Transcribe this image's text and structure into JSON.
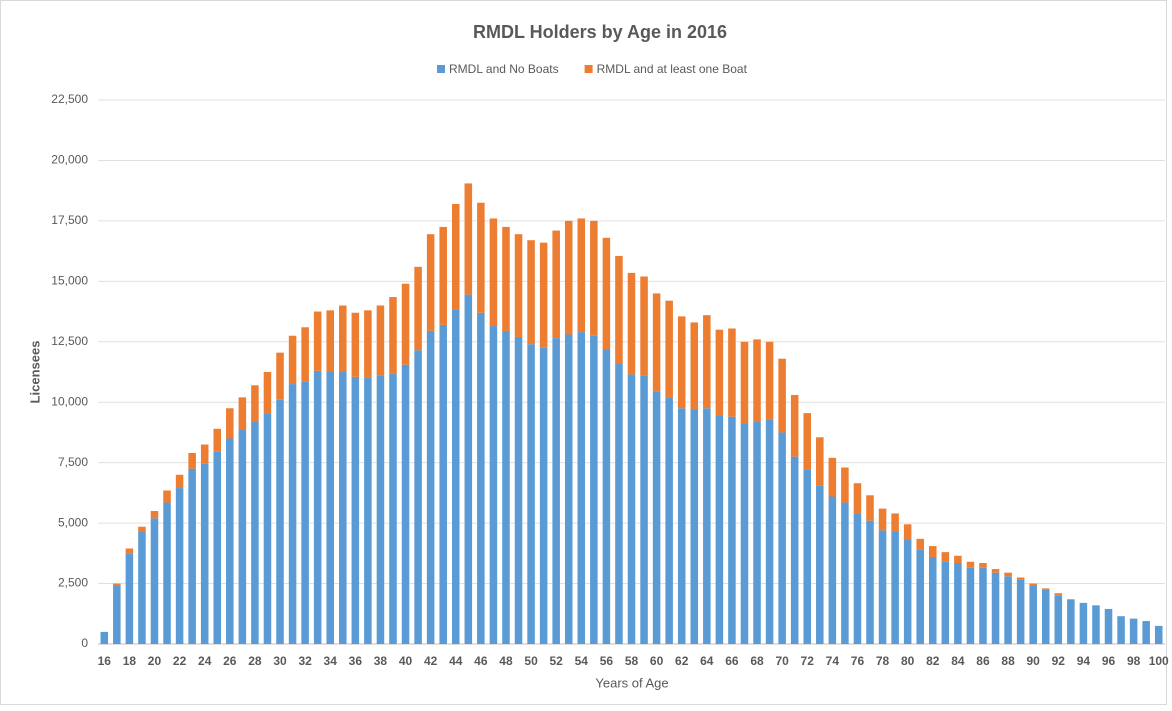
{
  "chart_data": {
    "type": "stacked_bar",
    "title": "RMDL Holders by Age in 2016",
    "x_label": "Years of Age",
    "y_label": "Licensees",
    "categories": [
      "16",
      null,
      "18",
      null,
      "20",
      null,
      "22",
      null,
      "24",
      null,
      "26",
      null,
      "28",
      null,
      "30",
      null,
      "32",
      null,
      "34",
      null,
      "36",
      null,
      "38",
      null,
      "40",
      null,
      "42",
      null,
      "44",
      null,
      "46",
      null,
      "48",
      null,
      "50",
      null,
      "52",
      null,
      "54",
      null,
      "56",
      null,
      "58",
      null,
      "60",
      null,
      "62",
      null,
      "64",
      null,
      "66",
      null,
      "68",
      null,
      "70",
      null,
      "72",
      null,
      "74",
      null,
      "76",
      null,
      "78",
      null,
      "80",
      null,
      "82",
      null,
      "84",
      null,
      "86",
      null,
      "88",
      null,
      "90",
      null,
      "92",
      null,
      "94",
      null,
      "96",
      null,
      "98",
      null,
      "100"
    ],
    "series": [
      {
        "name": "RMDL and No Boats",
        "color": "#5b9bd5",
        "values": [
          500,
          2400,
          3750,
          4650,
          5200,
          5850,
          6450,
          7250,
          7450,
          7950,
          8500,
          8850,
          9200,
          9550,
          10100,
          10750,
          10850,
          11300,
          11250,
          11250,
          11050,
          11000,
          11100,
          11200,
          11550,
          12150,
          12950,
          13200,
          13850,
          14450,
          13700,
          13150,
          12950,
          12700,
          12400,
          12250,
          12650,
          12800,
          12900,
          12750,
          12200,
          11600,
          11150,
          11100,
          10450,
          10200,
          9750,
          9700,
          9750,
          9450,
          9400,
          9100,
          9200,
          9300,
          8750,
          7750,
          7200,
          6550,
          6100,
          5850,
          5400,
          5100,
          4700,
          4650,
          4300,
          3900,
          3600,
          3400,
          3350,
          3150,
          3150,
          2950,
          2800,
          2650,
          2400,
          2250,
          2000,
          1850,
          1700,
          1600,
          1450,
          1150,
          1050,
          950,
          750
        ]
      },
      {
        "name": "RMDL and at least one Boat",
        "color": "#ed7d31",
        "values": [
          0,
          100,
          200,
          200,
          300,
          500,
          550,
          650,
          800,
          950,
          1250,
          1350,
          1500,
          1700,
          1950,
          2000,
          2250,
          2450,
          2550,
          2750,
          2650,
          2800,
          2900,
          3150,
          3350,
          3450,
          4000,
          4050,
          4350,
          4600,
          4550,
          4450,
          4300,
          4250,
          4300,
          4350,
          4450,
          4700,
          4700,
          4750,
          4600,
          4450,
          4200,
          4100,
          4050,
          4000,
          3800,
          3600,
          3850,
          3550,
          3650,
          3400,
          3400,
          3200,
          3050,
          2550,
          2350,
          2000,
          1600,
          1450,
          1250,
          1050,
          900,
          750,
          650,
          450,
          450,
          400,
          300,
          250,
          200,
          150,
          150,
          100,
          100,
          50,
          100,
          0,
          0,
          0,
          0,
          0,
          0,
          0,
          0
        ]
      }
    ],
    "ylim": [
      0,
      22500
    ],
    "yticks": [
      0,
      {
        "value": 2500,
        "label": "2,500"
      },
      {
        "value": 5000,
        "label": "5,000"
      },
      {
        "value": 7500,
        "label": "7,500"
      },
      {
        "value": 10000,
        "label": "10,000"
      },
      {
        "value": 12500,
        "label": "12,500"
      },
      {
        "value": 15000,
        "label": "15,000"
      },
      {
        "value": 17500,
        "label": "17,500"
      },
      {
        "value": 20000,
        "label": "20,000"
      },
      {
        "value": 22500,
        "label": "22,500"
      }
    ],
    "grid": true,
    "legend": "top"
  }
}
